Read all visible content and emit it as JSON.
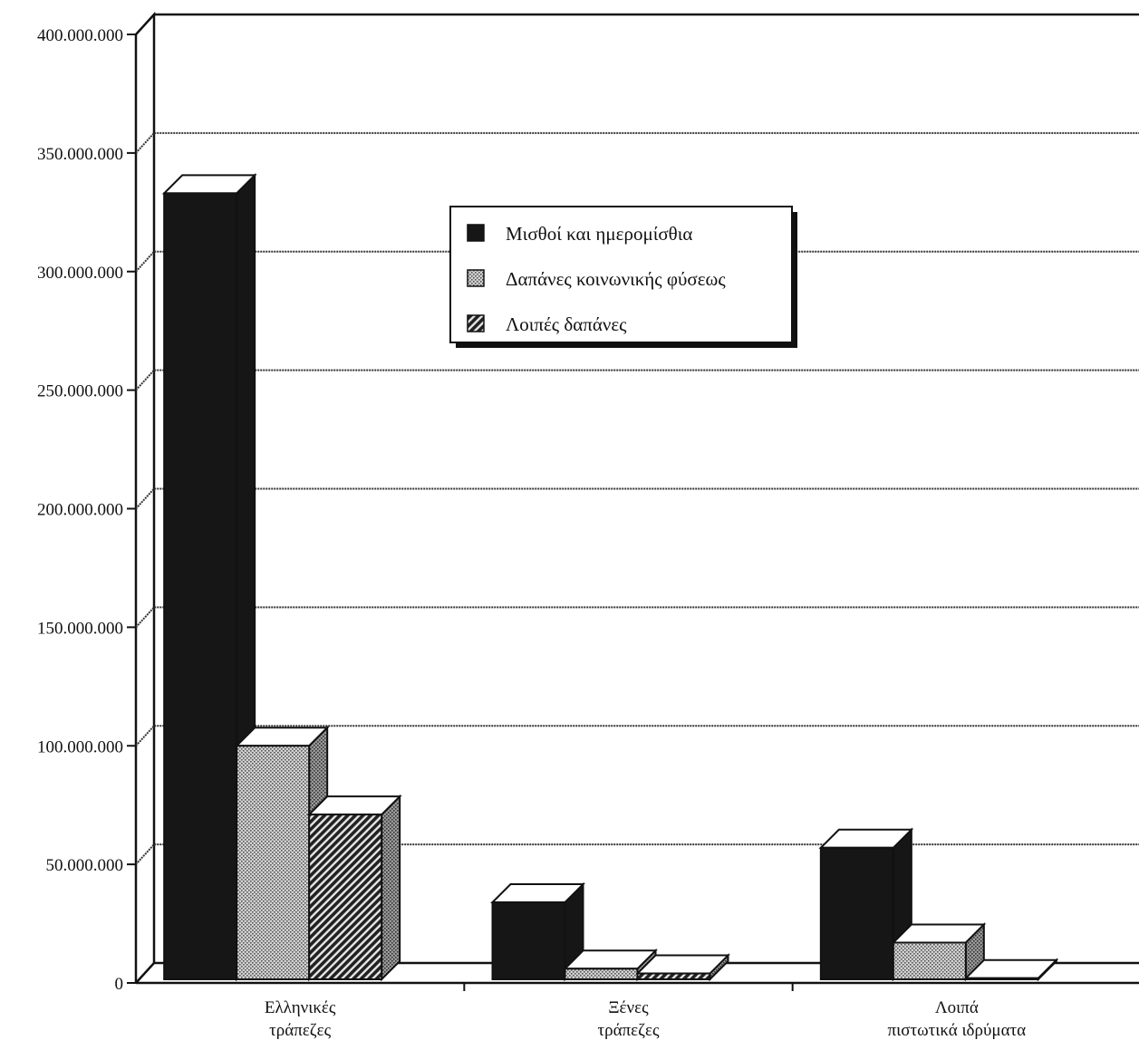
{
  "chart_data": {
    "type": "bar",
    "categories": [
      [
        "Ελληνικές",
        "τράπεζες"
      ],
      [
        "Ξένες",
        "τράπεζες"
      ],
      [
        "Λοιπά",
        "πιστωτικά ιδρύματα"
      ]
    ],
    "series": [
      {
        "name": "Μισθοί και ημερομίσθια",
        "values": [
          333000000,
          34000000,
          57000000
        ],
        "pattern": "solid"
      },
      {
        "name": "Δαπάνες κοινωνικής φύσεως",
        "values": [
          100000000,
          6000000,
          17000000
        ],
        "pattern": "dots"
      },
      {
        "name": "Λοιπές δαπάνες",
        "values": [
          71000000,
          4000000,
          2000000
        ],
        "pattern": "hatch"
      }
    ],
    "y_ticks": [
      "0",
      "50.000.000",
      "100.000.000",
      "150.000.000",
      "200.000.000",
      "250.000.000",
      "300.000.000",
      "350.000.000",
      "400.000.000"
    ],
    "ylim": [
      0,
      400000000
    ],
    "grid": true,
    "legend_position": "top-center",
    "style": "3d-bar",
    "colors": {
      "solid": "#161616",
      "dots": "#c4c4c4",
      "hatch": "#2a2a2a",
      "background": "#ffffff"
    }
  }
}
